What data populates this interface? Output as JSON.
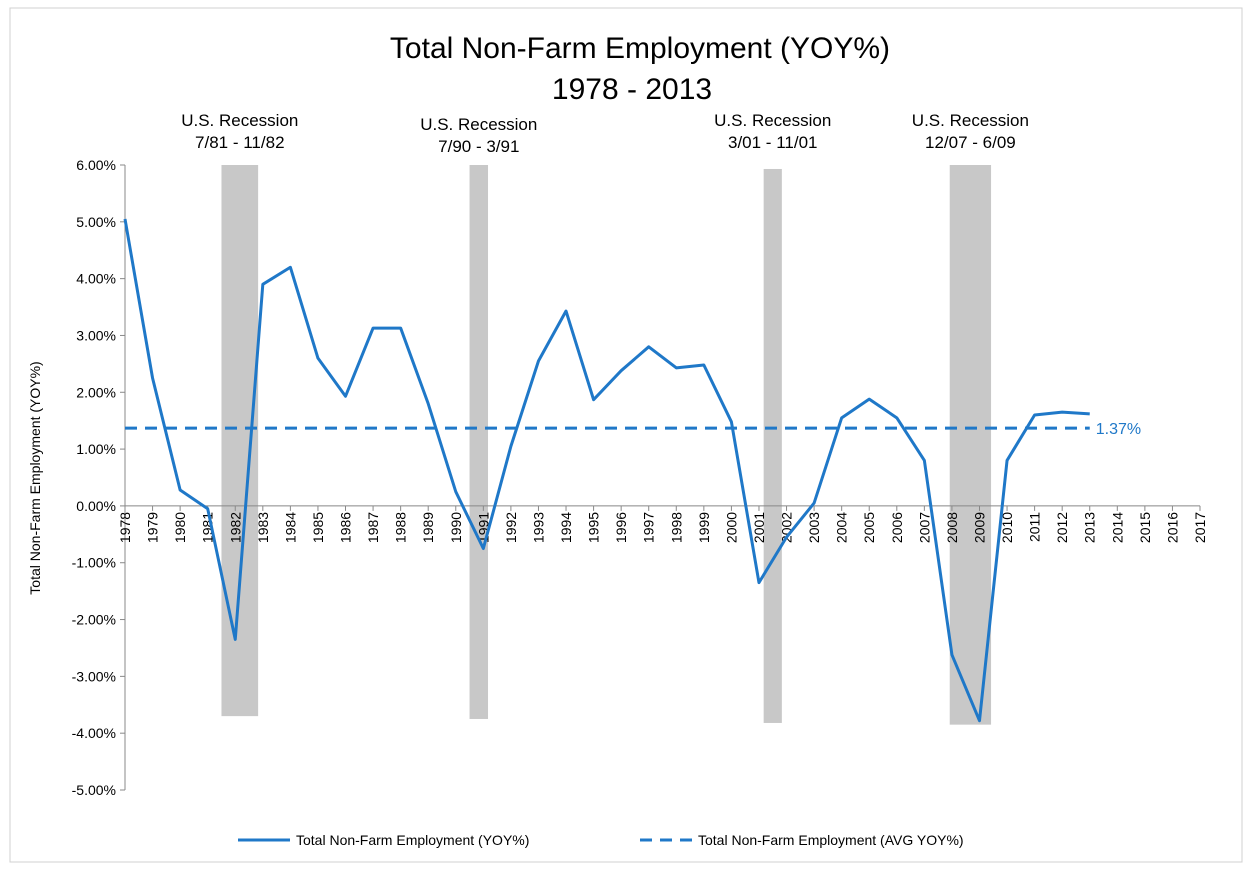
{
  "chart_data": {
    "type": "line",
    "title": "Total Non-Farm Employment (YOY%)",
    "subtitle": "1978 - 2013",
    "y_label": "Total Non-Farm Employment (YOY%)",
    "categories": [
      "1978",
      "1979",
      "1980",
      "1981",
      "1982",
      "1983",
      "1984",
      "1985",
      "1986",
      "1987",
      "1988",
      "1989",
      "1990",
      "1991",
      "1992",
      "1993",
      "1994",
      "1995",
      "1996",
      "1997",
      "1998",
      "1999",
      "2000",
      "2001",
      "2002",
      "2003",
      "2004",
      "2005",
      "2006",
      "2007",
      "2008",
      "2009",
      "2010",
      "2011",
      "2012",
      "2013",
      "2014",
      "2015",
      "2016",
      "2017"
    ],
    "series": [
      {
        "name": "Total Non-Farm Employment (YOY%)",
        "color": "#1f78c8",
        "style": "solid",
        "values": [
          5.05,
          2.25,
          0.28,
          -0.05,
          -2.35,
          3.9,
          4.2,
          2.6,
          1.93,
          3.13,
          3.13,
          1.8,
          0.25,
          -0.75,
          1.05,
          2.55,
          3.43,
          1.87,
          2.38,
          2.8,
          2.43,
          2.48,
          1.48,
          -1.35,
          -0.55,
          0.05,
          1.55,
          1.88,
          1.55,
          0.8,
          -2.62,
          -3.78,
          0.8,
          1.6,
          1.65,
          1.62,
          null,
          null,
          null,
          null
        ]
      },
      {
        "name": "Total Non-Farm Employment (AVG YOY%)",
        "color": "#1f78c8",
        "style": "dashed",
        "values": [
          1.37,
          1.37,
          1.37,
          1.37,
          1.37,
          1.37,
          1.37,
          1.37,
          1.37,
          1.37,
          1.37,
          1.37,
          1.37,
          1.37,
          1.37,
          1.37,
          1.37,
          1.37,
          1.37,
          1.37,
          1.37,
          1.37,
          1.37,
          1.37,
          1.37,
          1.37,
          1.37,
          1.37,
          1.37,
          1.37,
          1.37,
          1.37,
          1.37,
          1.37,
          1.37,
          1.37,
          null,
          null,
          null,
          null
        ],
        "value_labels": [
          null,
          null,
          null,
          null,
          null,
          null,
          null,
          null,
          null,
          null,
          null,
          null,
          null,
          null,
          null,
          null,
          null,
          null,
          null,
          null,
          null,
          null,
          null,
          null,
          null,
          null,
          null,
          null,
          null,
          null,
          null,
          null,
          null,
          null,
          null,
          "1.37%",
          null,
          null,
          null,
          null
        ]
      }
    ],
    "recessions": [
      {
        "label": [
          "U.S. Recession",
          "7/81 - 11/82"
        ],
        "x0": 1981.5,
        "x1": 1982.83,
        "y0": -3.7,
        "y1": 6.0
      },
      {
        "label": [
          "U.S. Recession",
          "7/90 - 3/91"
        ],
        "x0": 1990.5,
        "x1": 1991.17,
        "y0": -3.75,
        "y1": 6.0
      },
      {
        "label": [
          "U.S. Recession",
          "3/01 - 11/01"
        ],
        "x0": 2001.17,
        "x1": 2001.83,
        "y0": -3.82,
        "y1": 5.93
      },
      {
        "label": [
          "U.S. Recession",
          "12/07 - 6/09"
        ],
        "x0": 2007.92,
        "x1": 2009.42,
        "y0": -3.85,
        "y1": 6.0
      }
    ],
    "recession_color": "#c8c8c8",
    "ylim": [
      -5,
      6
    ],
    "yticks": [
      {
        "value": 6,
        "label": "6.00%"
      },
      {
        "value": 5,
        "label": "5.00%"
      },
      {
        "value": 4,
        "label": "4.00%"
      },
      {
        "value": 3,
        "label": "3.00%"
      },
      {
        "value": 2,
        "label": "2.00%"
      },
      {
        "value": 1,
        "label": "1.00%"
      },
      {
        "value": 0,
        "label": "0.00%"
      },
      {
        "value": -1,
        "label": "-1.00%"
      },
      {
        "value": -2,
        "label": "-2.00%"
      },
      {
        "value": -3,
        "label": "-3.00%"
      },
      {
        "value": -4,
        "label": "-4.00%"
      },
      {
        "value": -5,
        "label": "-5.00%"
      }
    ],
    "grid": false,
    "legend": "bottom"
  }
}
